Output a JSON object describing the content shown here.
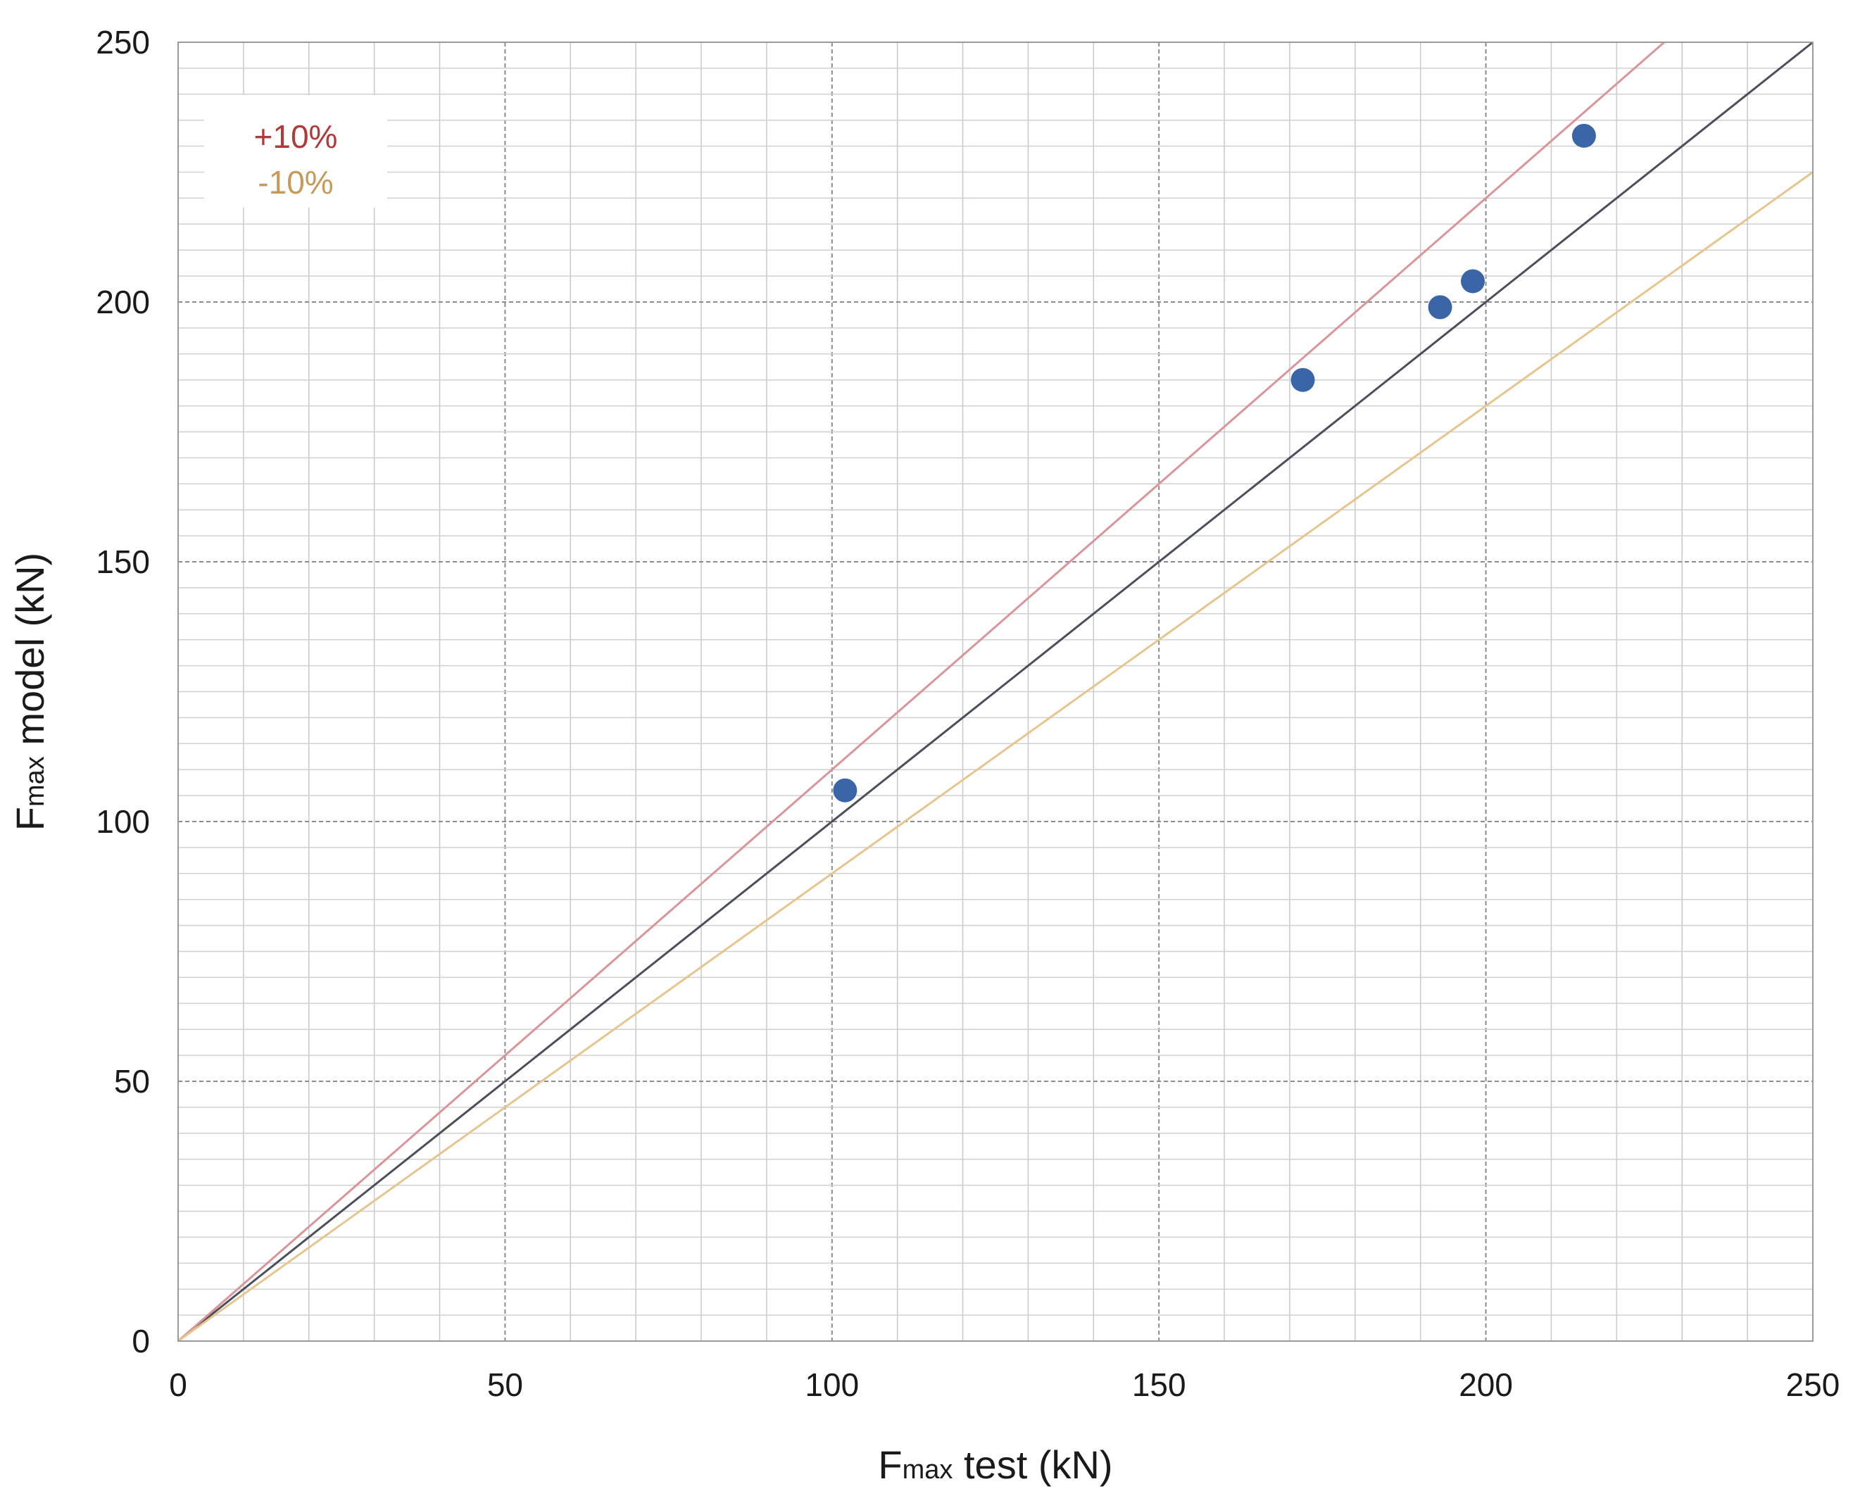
{
  "chart_data": {
    "type": "scatter",
    "title": "",
    "xlabel": {
      "main": "F",
      "sub": "max",
      "rest": " test (kN)"
    },
    "ylabel": {
      "main": "F",
      "sub": "max",
      "rest": " model (kN)"
    },
    "xlim": [
      0,
      250
    ],
    "ylim": [
      0,
      250
    ],
    "x_ticks": [
      "0",
      "50",
      "100",
      "150",
      "200",
      "250"
    ],
    "y_ticks": [
      "0",
      "50",
      "100",
      "150",
      "200",
      "250"
    ],
    "grid": true,
    "legend": {
      "placement": "top-left",
      "entries": [
        {
          "label": "+10%",
          "color": "#b03a3a"
        },
        {
          "label": "-10%",
          "color": "#c89a5a"
        }
      ]
    },
    "points": [
      {
        "x": 102,
        "y": 106
      },
      {
        "x": 172,
        "y": 185
      },
      {
        "x": 193,
        "y": 199
      },
      {
        "x": 198,
        "y": 204
      },
      {
        "x": 215,
        "y": 232
      }
    ],
    "reference_lines": [
      {
        "slope": 1.0,
        "color": "#4a4f5c"
      },
      {
        "slope": 1.1,
        "color": "#d9959a"
      },
      {
        "slope": 0.9,
        "color": "#e6c58f"
      }
    ],
    "point_color": "#3a66a8"
  }
}
